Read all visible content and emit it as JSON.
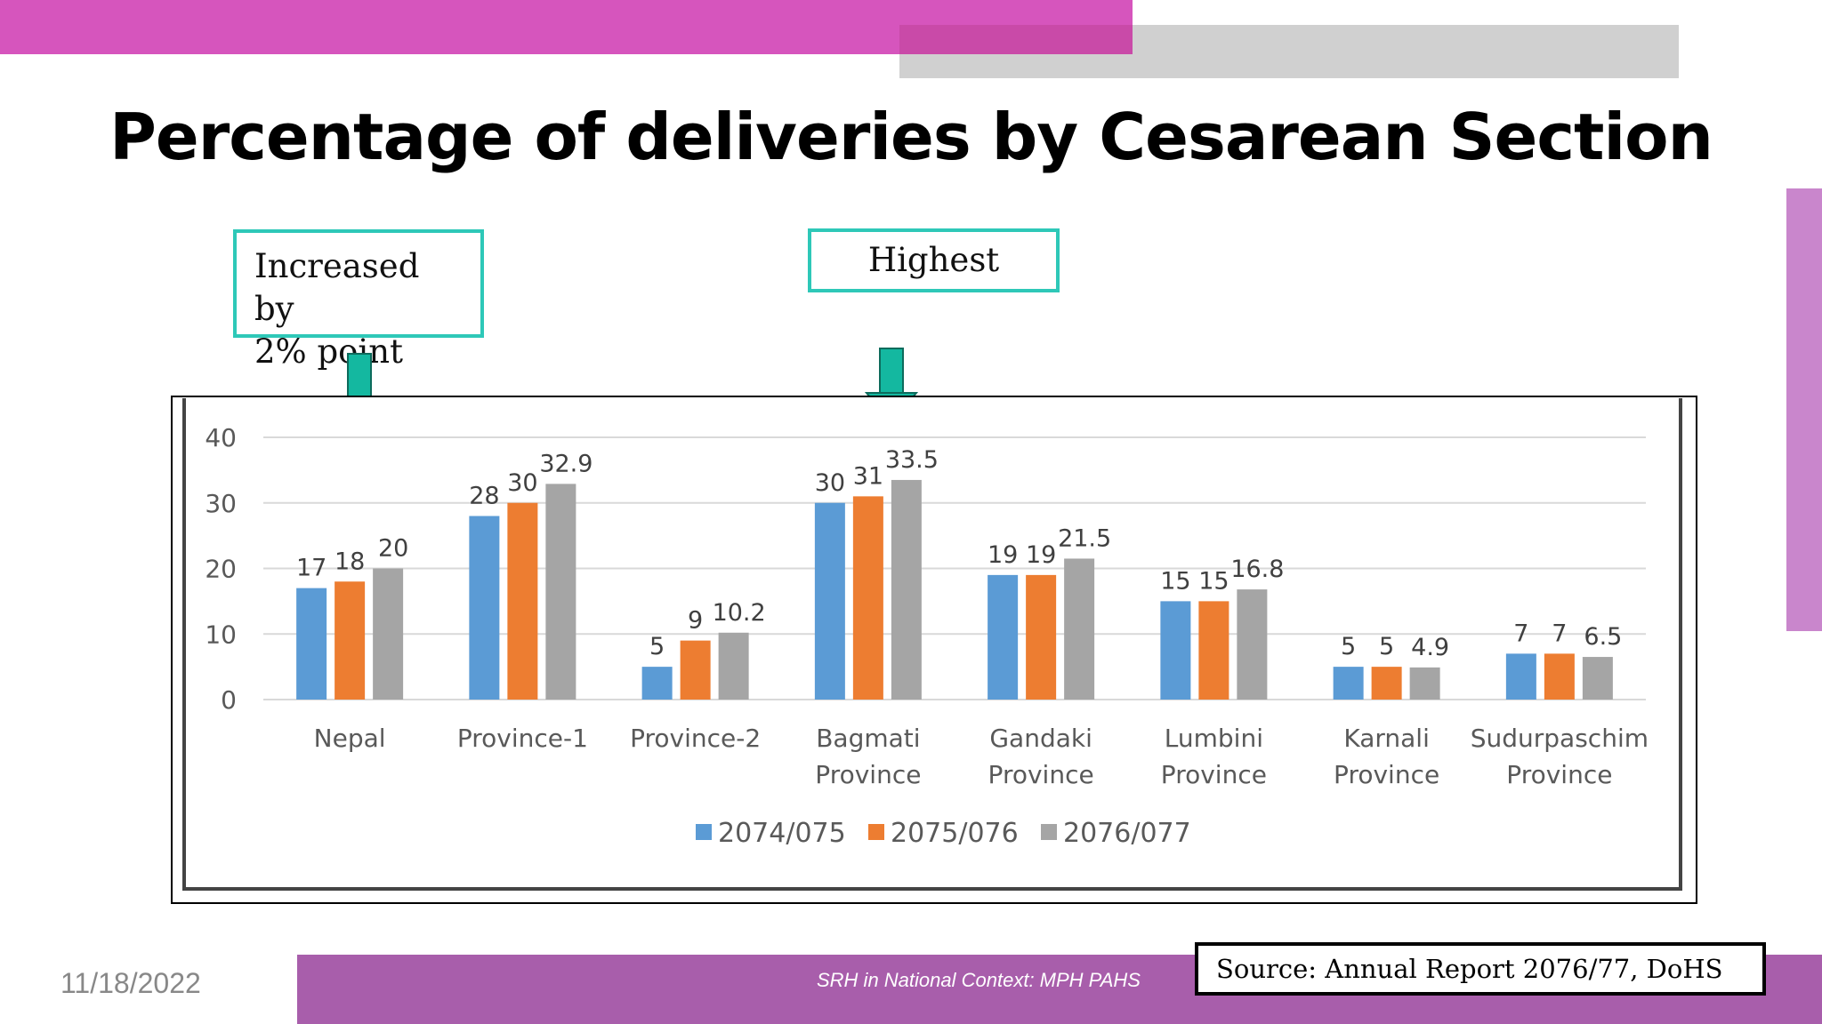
{
  "title": "Percentage of deliveries by Cesarean Section",
  "callouts": [
    {
      "text": "Increased by\n2% point"
    },
    {
      "text": "Highest"
    }
  ],
  "footer": {
    "date": "11/18/2022",
    "caption": "SRH in National Context: MPH PAHS",
    "source": "Source: Annual Report 2076/77, DoHS"
  },
  "colors": {
    "pink": "#d655bd",
    "purple": "#a85eab",
    "teal": "#2ec8b8",
    "series": [
      "#5b9bd5",
      "#ed7d31",
      "#a5a5a5"
    ]
  },
  "chart_data": {
    "type": "bar",
    "categories": [
      [
        "Nepal"
      ],
      [
        "Province-1"
      ],
      [
        "Province-2"
      ],
      [
        "Bagmati",
        "Province"
      ],
      [
        "Gandaki",
        "Province"
      ],
      [
        "Lumbini",
        "Province"
      ],
      [
        "Karnali",
        "Province"
      ],
      [
        "Sudurpaschim",
        "Province"
      ]
    ],
    "series": [
      {
        "name": "2074/075",
        "values": [
          17,
          28,
          5,
          30,
          19,
          15,
          5,
          7
        ],
        "labels": [
          "17",
          "28",
          "5",
          "30",
          "19",
          "15",
          "5",
          "7"
        ]
      },
      {
        "name": "2075/076",
        "values": [
          18,
          30,
          9,
          31,
          19,
          15,
          5,
          7
        ],
        "labels": [
          "18",
          "30",
          "9",
          "31",
          "19",
          "15",
          "5",
          "7"
        ]
      },
      {
        "name": "2076/077",
        "values": [
          20,
          32.9,
          10.2,
          33.5,
          21.5,
          16.8,
          4.9,
          6.5
        ],
        "labels": [
          "20",
          "32.9",
          "10.2",
          "33.5",
          "21.5",
          "16.8",
          "4.9",
          "6.5"
        ]
      }
    ],
    "ylim": [
      0,
      40
    ],
    "yticks": [
      "0",
      "10",
      "20",
      "30",
      "40"
    ],
    "grid": true,
    "legend": "bottom"
  }
}
